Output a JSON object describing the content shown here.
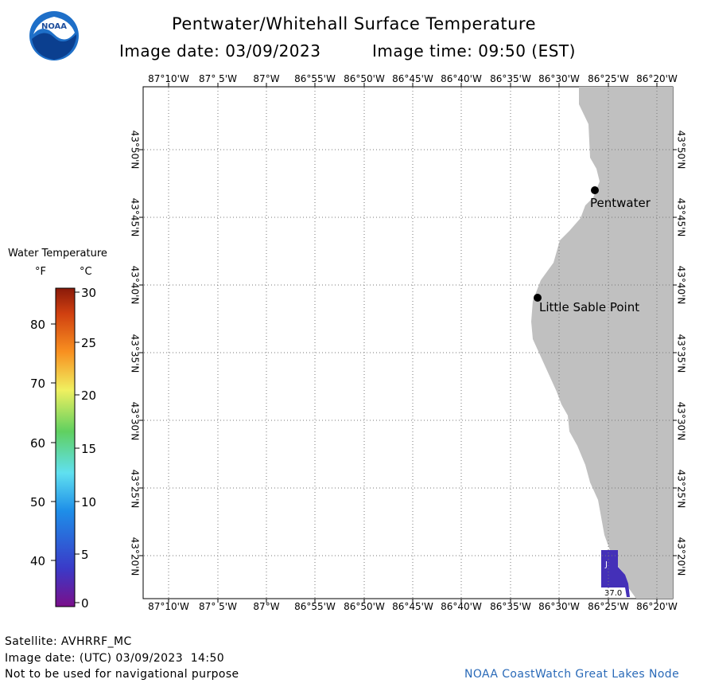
{
  "header": {
    "title": "Pentwater/Whitehall Surface Temperature",
    "date_label": "Image date: 03/09/2023",
    "time_label": "Image time: 09:50 (EST)",
    "logo_text": "NOAA"
  },
  "map": {
    "lon_labels": [
      "87°10'W",
      "87° 5'W",
      "87°W",
      "86°55'W",
      "86°50'W",
      "86°45'W",
      "86°40'W",
      "86°35'W",
      "86°30'W",
      "86°25'W",
      "86°20'W"
    ],
    "lat_labels": [
      "43°50'N",
      "43°45'N",
      "43°40'N",
      "43°35'N",
      "43°30'N",
      "43°25'N",
      "43°20'N"
    ],
    "places": [
      {
        "name": "Pentwater"
      },
      {
        "name": "Little Sable Point"
      }
    ],
    "water_value_label": "37.0",
    "colors": {
      "land": "#c0c0c0",
      "water_sample": "#4430b8",
      "grid": "#777777"
    }
  },
  "legend": {
    "title": "Water Temperature",
    "unit_f": "°F",
    "unit_c": "°C",
    "f_ticks": [
      "80",
      "70",
      "60",
      "50",
      "40"
    ],
    "c_ticks": [
      "30",
      "25",
      "20",
      "15",
      "10",
      "5",
      "0"
    ]
  },
  "footer": {
    "satellite": "Satellite: AVHRRF_MC",
    "utc_date": "Image date: (UTC) 03/09/2023  14:50",
    "disclaimer": "Not to be used for navigational purpose",
    "credit": "NOAA CoastWatch Great Lakes Node"
  }
}
